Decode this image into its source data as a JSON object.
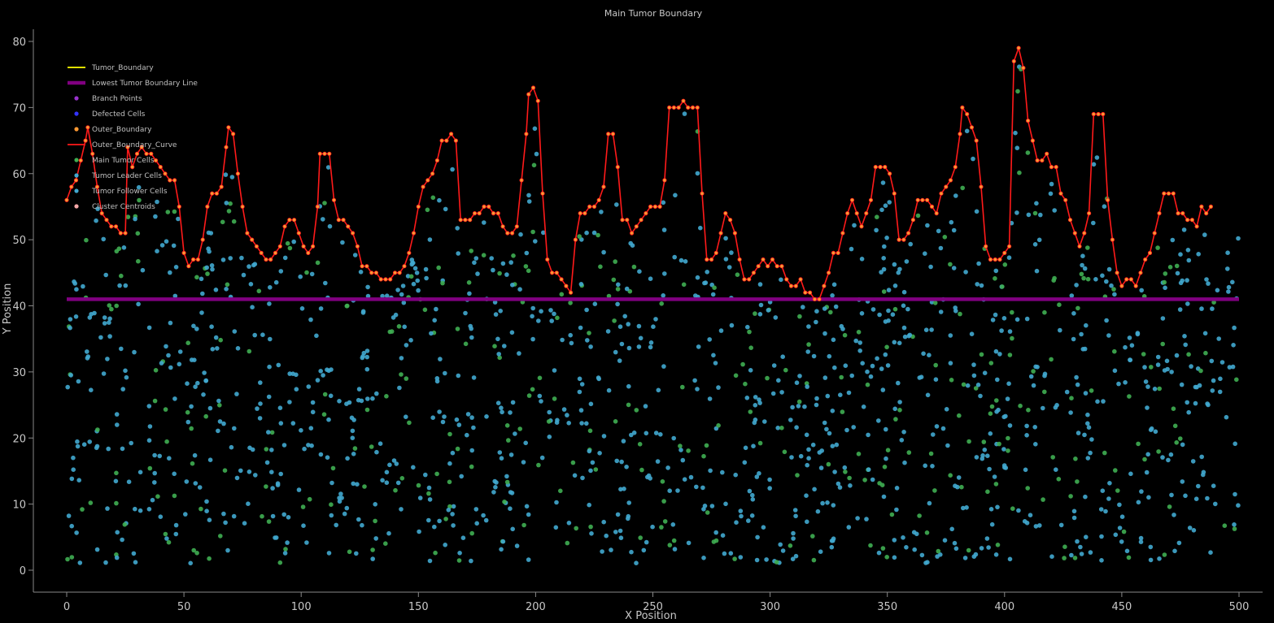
{
  "chart_data": {
    "type": "scatter",
    "title": "Main Tumor Boundary",
    "xlabel": "X Position",
    "ylabel": "Y Position",
    "xlim": [
      -14,
      510
    ],
    "ylim": [
      -4,
      82
    ],
    "x_ticks": [
      0,
      50,
      100,
      150,
      200,
      250,
      300,
      350,
      400,
      450,
      500
    ],
    "y_ticks": [
      0,
      10,
      20,
      30,
      40,
      50,
      60,
      70,
      80
    ],
    "grid": false,
    "legend_position": "top-left",
    "lowest_boundary_y": 41,
    "outer_boundary_curve": [
      [
        0,
        56
      ],
      [
        2,
        58
      ],
      [
        4,
        59
      ],
      [
        6,
        62
      ],
      [
        8,
        65
      ],
      [
        9,
        67
      ],
      [
        11,
        63
      ],
      [
        13,
        58
      ],
      [
        15,
        54
      ],
      [
        17,
        53
      ],
      [
        19,
        52
      ],
      [
        21,
        52
      ],
      [
        23,
        51
      ],
      [
        25,
        51
      ],
      [
        26,
        64
      ],
      [
        28,
        61
      ],
      [
        30,
        63
      ],
      [
        32,
        64
      ],
      [
        34,
        63
      ],
      [
        36,
        63
      ],
      [
        38,
        62
      ],
      [
        40,
        61
      ],
      [
        42,
        60
      ],
      [
        44,
        59
      ],
      [
        46,
        59
      ],
      [
        48,
        55
      ],
      [
        50,
        48
      ],
      [
        52,
        46
      ],
      [
        54,
        47
      ],
      [
        56,
        47
      ],
      [
        58,
        50
      ],
      [
        60,
        55
      ],
      [
        62,
        57
      ],
      [
        64,
        57
      ],
      [
        66,
        58
      ],
      [
        68,
        64
      ],
      [
        69,
        67
      ],
      [
        71,
        66
      ],
      [
        73,
        60
      ],
      [
        75,
        55
      ],
      [
        77,
        51
      ],
      [
        79,
        50
      ],
      [
        81,
        49
      ],
      [
        83,
        48
      ],
      [
        85,
        47
      ],
      [
        87,
        47
      ],
      [
        89,
        48
      ],
      [
        91,
        49
      ],
      [
        93,
        52
      ],
      [
        95,
        53
      ],
      [
        97,
        53
      ],
      [
        99,
        51
      ],
      [
        101,
        49
      ],
      [
        103,
        48
      ],
      [
        105,
        49
      ],
      [
        107,
        55
      ],
      [
        108,
        63
      ],
      [
        110,
        63
      ],
      [
        112,
        63
      ],
      [
        114,
        56
      ],
      [
        116,
        53
      ],
      [
        118,
        53
      ],
      [
        120,
        52
      ],
      [
        122,
        51
      ],
      [
        124,
        49
      ],
      [
        126,
        46
      ],
      [
        128,
        46
      ],
      [
        130,
        45
      ],
      [
        132,
        45
      ],
      [
        134,
        44
      ],
      [
        136,
        44
      ],
      [
        138,
        44
      ],
      [
        140,
        45
      ],
      [
        142,
        45
      ],
      [
        144,
        46
      ],
      [
        146,
        48
      ],
      [
        148,
        51
      ],
      [
        150,
        55
      ],
      [
        152,
        58
      ],
      [
        154,
        59
      ],
      [
        156,
        60
      ],
      [
        158,
        62
      ],
      [
        160,
        65
      ],
      [
        162,
        65
      ],
      [
        164,
        66
      ],
      [
        166,
        65
      ],
      [
        168,
        53
      ],
      [
        170,
        53
      ],
      [
        172,
        53
      ],
      [
        174,
        54
      ],
      [
        176,
        54
      ],
      [
        178,
        55
      ],
      [
        180,
        55
      ],
      [
        182,
        54
      ],
      [
        184,
        54
      ],
      [
        186,
        52
      ],
      [
        188,
        51
      ],
      [
        190,
        51
      ],
      [
        192,
        52
      ],
      [
        194,
        59
      ],
      [
        196,
        66
      ],
      [
        197,
        72
      ],
      [
        199,
        73
      ],
      [
        201,
        71
      ],
      [
        203,
        57
      ],
      [
        205,
        47
      ],
      [
        207,
        45
      ],
      [
        209,
        45
      ],
      [
        211,
        44
      ],
      [
        213,
        43
      ],
      [
        215,
        42
      ],
      [
        217,
        50
      ],
      [
        219,
        54
      ],
      [
        221,
        54
      ],
      [
        223,
        55
      ],
      [
        225,
        55
      ],
      [
        227,
        56
      ],
      [
        229,
        58
      ],
      [
        231,
        66
      ],
      [
        233,
        66
      ],
      [
        235,
        61
      ],
      [
        237,
        53
      ],
      [
        239,
        53
      ],
      [
        241,
        51
      ],
      [
        243,
        52
      ],
      [
        245,
        53
      ],
      [
        247,
        54
      ],
      [
        249,
        55
      ],
      [
        251,
        55
      ],
      [
        253,
        55
      ],
      [
        255,
        59
      ],
      [
        257,
        70
      ],
      [
        259,
        70
      ],
      [
        261,
        70
      ],
      [
        263,
        71
      ],
      [
        265,
        70
      ],
      [
        267,
        70
      ],
      [
        269,
        70
      ],
      [
        271,
        57
      ],
      [
        273,
        47
      ],
      [
        275,
        47
      ],
      [
        277,
        48
      ],
      [
        279,
        51
      ],
      [
        281,
        54
      ],
      [
        283,
        53
      ],
      [
        285,
        51
      ],
      [
        287,
        47
      ],
      [
        289,
        44
      ],
      [
        291,
        44
      ],
      [
        293,
        45
      ],
      [
        295,
        46
      ],
      [
        297,
        47
      ],
      [
        299,
        46
      ],
      [
        301,
        47
      ],
      [
        303,
        46
      ],
      [
        305,
        46
      ],
      [
        307,
        44
      ],
      [
        309,
        43
      ],
      [
        311,
        43
      ],
      [
        313,
        44
      ],
      [
        315,
        42
      ],
      [
        317,
        42
      ],
      [
        319,
        41
      ],
      [
        321,
        41
      ],
      [
        323,
        43
      ],
      [
        325,
        45
      ],
      [
        327,
        48
      ],
      [
        329,
        48
      ],
      [
        331,
        51
      ],
      [
        333,
        54
      ],
      [
        335,
        56
      ],
      [
        337,
        54
      ],
      [
        339,
        52
      ],
      [
        341,
        54
      ],
      [
        343,
        56
      ],
      [
        345,
        61
      ],
      [
        347,
        61
      ],
      [
        349,
        61
      ],
      [
        351,
        60
      ],
      [
        353,
        57
      ],
      [
        355,
        50
      ],
      [
        357,
        50
      ],
      [
        359,
        51
      ],
      [
        361,
        53
      ],
      [
        363,
        56
      ],
      [
        365,
        56
      ],
      [
        367,
        56
      ],
      [
        369,
        55
      ],
      [
        371,
        54
      ],
      [
        373,
        57
      ],
      [
        375,
        58
      ],
      [
        377,
        59
      ],
      [
        379,
        61
      ],
      [
        381,
        66
      ],
      [
        382,
        70
      ],
      [
        384,
        69
      ],
      [
        386,
        67
      ],
      [
        388,
        65
      ],
      [
        390,
        58
      ],
      [
        392,
        49
      ],
      [
        394,
        47
      ],
      [
        396,
        47
      ],
      [
        398,
        47
      ],
      [
        400,
        48
      ],
      [
        402,
        49
      ],
      [
        404,
        77
      ],
      [
        406,
        79
      ],
      [
        408,
        76
      ],
      [
        410,
        68
      ],
      [
        412,
        65
      ],
      [
        414,
        62
      ],
      [
        416,
        62
      ],
      [
        418,
        63
      ],
      [
        420,
        61
      ],
      [
        422,
        61
      ],
      [
        424,
        57
      ],
      [
        426,
        56
      ],
      [
        428,
        53
      ],
      [
        430,
        51
      ],
      [
        432,
        49
      ],
      [
        434,
        51
      ],
      [
        436,
        54
      ],
      [
        438,
        69
      ],
      [
        440,
        69
      ],
      [
        442,
        69
      ],
      [
        444,
        56
      ],
      [
        446,
        50
      ],
      [
        448,
        45
      ],
      [
        450,
        43
      ],
      [
        452,
        44
      ],
      [
        454,
        44
      ],
      [
        456,
        43
      ],
      [
        458,
        45
      ],
      [
        460,
        47
      ],
      [
        462,
        48
      ],
      [
        464,
        51
      ],
      [
        466,
        54
      ],
      [
        468,
        57
      ],
      [
        470,
        57
      ],
      [
        472,
        57
      ],
      [
        474,
        54
      ],
      [
        476,
        54
      ],
      [
        478,
        53
      ],
      [
        480,
        53
      ],
      [
        482,
        52
      ],
      [
        484,
        55
      ],
      [
        486,
        54
      ],
      [
        488,
        55
      ]
    ],
    "series": [
      {
        "name": "Tumor_Boundary",
        "color": "#ffff00",
        "marker": "line"
      },
      {
        "name": "Lowest Tumor Boundary Line",
        "color": "#800080",
        "marker": "thick-line"
      },
      {
        "name": "Branch Points",
        "color": "#9933cc",
        "marker": "dot"
      },
      {
        "name": "Defected Cells",
        "color": "#3333ff",
        "marker": "dot"
      },
      {
        "name": "Outer_Boundary",
        "color": "#ff9933",
        "marker": "dot"
      },
      {
        "name": "Outer_Boundary_Curve",
        "color": "#ff1a1a",
        "marker": "line"
      },
      {
        "name": "Main Tumor Cells",
        "color": "#3fae52",
        "marker": "dot"
      },
      {
        "name": "Tumor Leader Cells",
        "color": "#41a8cf",
        "marker": "dot"
      },
      {
        "name": "Tumor Follower Cells",
        "color": "#41a8cf",
        "marker": "dot"
      },
      {
        "name": "Cluster Centroids",
        "color": "#f4a7a7",
        "marker": "dot"
      }
    ],
    "scatter_note_points": "cells drawn as dense field of leader (cyan) and main (green) dots across 0-500 x 0-75"
  }
}
